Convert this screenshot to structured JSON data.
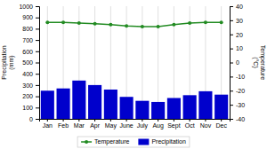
{
  "chart_data": {
    "type": "bar",
    "categories": [
      "Jan",
      "Feb",
      "Mar",
      "Apr",
      "May",
      "June",
      "July",
      "Aug",
      "Sept",
      "Oct",
      "Nov",
      "Dec"
    ],
    "series": [
      {
        "name": "Precipitation",
        "type": "bar",
        "color": "#0000cc",
        "values": [
          250,
          270,
          340,
          300,
          260,
          195,
          160,
          150,
          185,
          210,
          245,
          215
        ]
      },
      {
        "name": "Temperature",
        "type": "line",
        "color": "#228B22",
        "marker": "circle",
        "axis": "y2",
        "values": [
          28.5,
          28.5,
          28.0,
          27.5,
          27.0,
          26.0,
          25.5,
          25.5,
          27.0,
          28.0,
          28.5,
          28.5
        ]
      }
    ],
    "ylabel": "Precipitation\n(mm)",
    "y2label": "Temperature\n(°C)",
    "ylim": [
      0,
      1000
    ],
    "yticks": [
      0,
      100,
      200,
      300,
      400,
      500,
      600,
      700,
      800,
      900,
      1000
    ],
    "y2lim": [
      -40,
      40
    ],
    "y2ticks": [
      -40,
      -30,
      -20,
      -10,
      0,
      10,
      20,
      30,
      40
    ],
    "grid": true,
    "legend": "bottom"
  }
}
